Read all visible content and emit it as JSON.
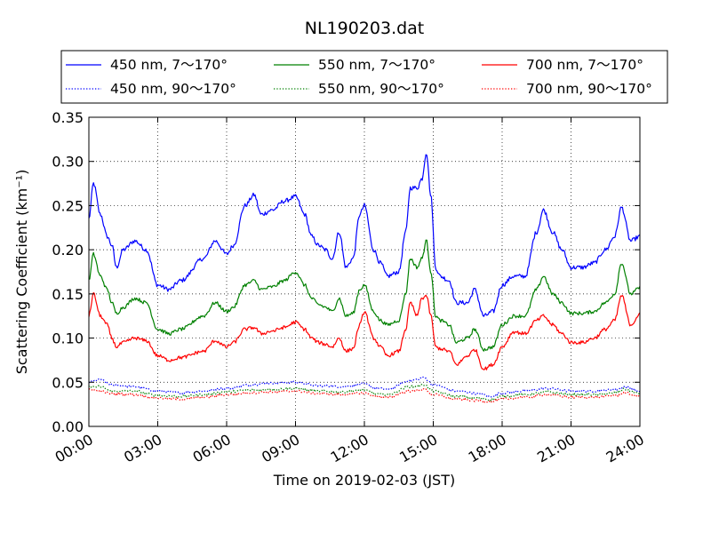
{
  "chart_data": {
    "type": "line",
    "title": "NL190203.dat",
    "xlabel": "Time on 2019-02-03 (JST)",
    "ylabel": "Scattering Coefficient (km⁻¹)",
    "xlim": [
      0,
      24
    ],
    "ylim": [
      0,
      0.35
    ],
    "x_unit": "hours",
    "xticks": [
      "00:00",
      "03:00",
      "06:00",
      "09:00",
      "12:00",
      "15:00",
      "18:00",
      "21:00",
      "24:00"
    ],
    "yticks": [
      "0.00",
      "0.05",
      "0.10",
      "0.15",
      "0.20",
      "0.25",
      "0.30",
      "0.35"
    ],
    "grid": true,
    "legend_position": "top",
    "series": [
      {
        "name": "450 nm, 7～170°",
        "color": "#0000ff",
        "style": "solid",
        "points": [
          [
            0,
            0.235
          ],
          [
            0.2,
            0.275
          ],
          [
            0.5,
            0.24
          ],
          [
            0.8,
            0.215
          ],
          [
            1.0,
            0.205
          ],
          [
            1.2,
            0.18
          ],
          [
            1.5,
            0.2
          ],
          [
            2.0,
            0.21
          ],
          [
            2.5,
            0.2
          ],
          [
            3.0,
            0.16
          ],
          [
            3.5,
            0.155
          ],
          [
            4.0,
            0.165
          ],
          [
            5.0,
            0.19
          ],
          [
            5.5,
            0.21
          ],
          [
            6.0,
            0.195
          ],
          [
            6.3,
            0.205
          ],
          [
            6.8,
            0.25
          ],
          [
            7.2,
            0.262
          ],
          [
            7.5,
            0.24
          ],
          [
            8.0,
            0.245
          ],
          [
            8.5,
            0.255
          ],
          [
            9.0,
            0.26
          ],
          [
            9.4,
            0.24
          ],
          [
            9.7,
            0.215
          ],
          [
            10.0,
            0.205
          ],
          [
            10.3,
            0.2
          ],
          [
            10.6,
            0.19
          ],
          [
            10.9,
            0.22
          ],
          [
            11.2,
            0.18
          ],
          [
            11.5,
            0.19
          ],
          [
            11.8,
            0.24
          ],
          [
            12.0,
            0.25
          ],
          [
            12.4,
            0.2
          ],
          [
            12.7,
            0.185
          ],
          [
            13.0,
            0.17
          ],
          [
            13.5,
            0.175
          ],
          [
            13.8,
            0.22
          ],
          [
            14.0,
            0.27
          ],
          [
            14.3,
            0.27
          ],
          [
            14.5,
            0.28
          ],
          [
            14.7,
            0.31
          ],
          [
            14.9,
            0.26
          ],
          [
            15.1,
            0.18
          ],
          [
            15.3,
            0.17
          ],
          [
            15.7,
            0.165
          ],
          [
            16.0,
            0.14
          ],
          [
            16.5,
            0.14
          ],
          [
            16.8,
            0.155
          ],
          [
            17.2,
            0.125
          ],
          [
            17.6,
            0.13
          ],
          [
            18.0,
            0.16
          ],
          [
            18.5,
            0.17
          ],
          [
            19.0,
            0.17
          ],
          [
            19.5,
            0.22
          ],
          [
            19.8,
            0.245
          ],
          [
            20.2,
            0.22
          ],
          [
            20.6,
            0.2
          ],
          [
            21.0,
            0.18
          ],
          [
            21.5,
            0.18
          ],
          [
            22.0,
            0.185
          ],
          [
            22.5,
            0.2
          ],
          [
            22.9,
            0.215
          ],
          [
            23.2,
            0.248
          ],
          [
            23.6,
            0.21
          ],
          [
            24.0,
            0.215
          ]
        ]
      },
      {
        "name": "450 nm, 90～170°",
        "color": "#0000ff",
        "style": "dotted",
        "points": [
          [
            0,
            0.05
          ],
          [
            0.5,
            0.053
          ],
          [
            1,
            0.047
          ],
          [
            2,
            0.045
          ],
          [
            3,
            0.04
          ],
          [
            4,
            0.038
          ],
          [
            5,
            0.04
          ],
          [
            6,
            0.043
          ],
          [
            7,
            0.047
          ],
          [
            8,
            0.049
          ],
          [
            9,
            0.05
          ],
          [
            10,
            0.046
          ],
          [
            11,
            0.045
          ],
          [
            12,
            0.048
          ],
          [
            12.5,
            0.043
          ],
          [
            13,
            0.042
          ],
          [
            14,
            0.052
          ],
          [
            14.6,
            0.055
          ],
          [
            15,
            0.047
          ],
          [
            16,
            0.04
          ],
          [
            17,
            0.037
          ],
          [
            17.5,
            0.034
          ],
          [
            18,
            0.038
          ],
          [
            19,
            0.04
          ],
          [
            20,
            0.043
          ],
          [
            21,
            0.04
          ],
          [
            22,
            0.04
          ],
          [
            23,
            0.042
          ],
          [
            23.3,
            0.045
          ],
          [
            24,
            0.04
          ]
        ]
      },
      {
        "name": "550 nm, 7～170°",
        "color": "#008000",
        "style": "solid",
        "points": [
          [
            0,
            0.165
          ],
          [
            0.2,
            0.195
          ],
          [
            0.5,
            0.17
          ],
          [
            0.8,
            0.155
          ],
          [
            1.0,
            0.14
          ],
          [
            1.2,
            0.128
          ],
          [
            1.5,
            0.135
          ],
          [
            2.0,
            0.145
          ],
          [
            2.5,
            0.14
          ],
          [
            3.0,
            0.11
          ],
          [
            3.5,
            0.105
          ],
          [
            4.0,
            0.11
          ],
          [
            5.0,
            0.125
          ],
          [
            5.5,
            0.14
          ],
          [
            6.0,
            0.13
          ],
          [
            6.3,
            0.135
          ],
          [
            6.8,
            0.16
          ],
          [
            7.2,
            0.165
          ],
          [
            7.5,
            0.155
          ],
          [
            8.0,
            0.158
          ],
          [
            8.5,
            0.165
          ],
          [
            9.0,
            0.175
          ],
          [
            9.4,
            0.16
          ],
          [
            9.7,
            0.145
          ],
          [
            10.0,
            0.138
          ],
          [
            10.3,
            0.135
          ],
          [
            10.6,
            0.13
          ],
          [
            10.9,
            0.145
          ],
          [
            11.2,
            0.125
          ],
          [
            11.5,
            0.128
          ],
          [
            11.8,
            0.155
          ],
          [
            12.0,
            0.16
          ],
          [
            12.4,
            0.13
          ],
          [
            12.7,
            0.12
          ],
          [
            13.0,
            0.115
          ],
          [
            13.5,
            0.12
          ],
          [
            13.8,
            0.15
          ],
          [
            14.0,
            0.19
          ],
          [
            14.3,
            0.18
          ],
          [
            14.5,
            0.19
          ],
          [
            14.7,
            0.21
          ],
          [
            14.9,
            0.175
          ],
          [
            15.1,
            0.125
          ],
          [
            15.3,
            0.12
          ],
          [
            15.7,
            0.115
          ],
          [
            16.0,
            0.095
          ],
          [
            16.5,
            0.1
          ],
          [
            16.8,
            0.11
          ],
          [
            17.2,
            0.087
          ],
          [
            17.6,
            0.09
          ],
          [
            18.0,
            0.115
          ],
          [
            18.5,
            0.125
          ],
          [
            19.0,
            0.125
          ],
          [
            19.5,
            0.155
          ],
          [
            19.8,
            0.17
          ],
          [
            20.2,
            0.15
          ],
          [
            20.6,
            0.14
          ],
          [
            21.0,
            0.128
          ],
          [
            21.5,
            0.128
          ],
          [
            22.0,
            0.13
          ],
          [
            22.5,
            0.14
          ],
          [
            22.9,
            0.15
          ],
          [
            23.2,
            0.185
          ],
          [
            23.6,
            0.15
          ],
          [
            24.0,
            0.157
          ]
        ]
      },
      {
        "name": "550 nm, 90～170°",
        "color": "#008000",
        "style": "dotted",
        "points": [
          [
            0,
            0.045
          ],
          [
            0.5,
            0.045
          ],
          [
            1,
            0.04
          ],
          [
            2,
            0.04
          ],
          [
            3,
            0.035
          ],
          [
            4,
            0.034
          ],
          [
            5,
            0.036
          ],
          [
            6,
            0.039
          ],
          [
            7,
            0.041
          ],
          [
            8,
            0.042
          ],
          [
            9,
            0.043
          ],
          [
            10,
            0.04
          ],
          [
            11,
            0.039
          ],
          [
            12,
            0.041
          ],
          [
            12.5,
            0.037
          ],
          [
            13,
            0.036
          ],
          [
            14,
            0.045
          ],
          [
            14.6,
            0.047
          ],
          [
            15,
            0.04
          ],
          [
            16,
            0.034
          ],
          [
            17,
            0.032
          ],
          [
            17.5,
            0.03
          ],
          [
            18,
            0.034
          ],
          [
            19,
            0.036
          ],
          [
            20,
            0.039
          ],
          [
            21,
            0.036
          ],
          [
            22,
            0.036
          ],
          [
            23,
            0.038
          ],
          [
            23.3,
            0.042
          ],
          [
            24,
            0.037
          ]
        ]
      },
      {
        "name": "700 nm, 7～170°",
        "color": "#ff0000",
        "style": "solid",
        "points": [
          [
            0,
            0.125
          ],
          [
            0.2,
            0.15
          ],
          [
            0.5,
            0.125
          ],
          [
            0.8,
            0.115
          ],
          [
            1.0,
            0.1
          ],
          [
            1.2,
            0.09
          ],
          [
            1.5,
            0.095
          ],
          [
            2.0,
            0.1
          ],
          [
            2.5,
            0.097
          ],
          [
            3.0,
            0.08
          ],
          [
            3.5,
            0.075
          ],
          [
            4.0,
            0.078
          ],
          [
            5.0,
            0.085
          ],
          [
            5.5,
            0.097
          ],
          [
            6.0,
            0.09
          ],
          [
            6.3,
            0.095
          ],
          [
            6.8,
            0.11
          ],
          [
            7.2,
            0.112
          ],
          [
            7.5,
            0.105
          ],
          [
            8.0,
            0.108
          ],
          [
            8.5,
            0.112
          ],
          [
            9.0,
            0.118
          ],
          [
            9.4,
            0.11
          ],
          [
            9.7,
            0.1
          ],
          [
            10.0,
            0.095
          ],
          [
            10.3,
            0.093
          ],
          [
            10.6,
            0.09
          ],
          [
            10.9,
            0.1
          ],
          [
            11.2,
            0.085
          ],
          [
            11.5,
            0.088
          ],
          [
            11.8,
            0.115
          ],
          [
            12.0,
            0.13
          ],
          [
            12.4,
            0.1
          ],
          [
            12.7,
            0.09
          ],
          [
            13.0,
            0.08
          ],
          [
            13.5,
            0.085
          ],
          [
            13.8,
            0.11
          ],
          [
            14.0,
            0.14
          ],
          [
            14.3,
            0.125
          ],
          [
            14.5,
            0.145
          ],
          [
            14.7,
            0.148
          ],
          [
            14.9,
            0.125
          ],
          [
            15.1,
            0.09
          ],
          [
            15.3,
            0.088
          ],
          [
            15.7,
            0.085
          ],
          [
            16.0,
            0.07
          ],
          [
            16.5,
            0.08
          ],
          [
            16.8,
            0.087
          ],
          [
            17.2,
            0.065
          ],
          [
            17.6,
            0.07
          ],
          [
            18.0,
            0.09
          ],
          [
            18.5,
            0.107
          ],
          [
            19.0,
            0.105
          ],
          [
            19.5,
            0.12
          ],
          [
            19.8,
            0.125
          ],
          [
            20.2,
            0.115
          ],
          [
            20.6,
            0.105
          ],
          [
            21.0,
            0.095
          ],
          [
            21.5,
            0.095
          ],
          [
            22.0,
            0.1
          ],
          [
            22.5,
            0.11
          ],
          [
            22.9,
            0.12
          ],
          [
            23.2,
            0.148
          ],
          [
            23.6,
            0.115
          ],
          [
            24.0,
            0.127
          ]
        ]
      },
      {
        "name": "700 nm, 90～170°",
        "color": "#ff0000",
        "style": "dotted",
        "points": [
          [
            0,
            0.042
          ],
          [
            0.5,
            0.04
          ],
          [
            1,
            0.037
          ],
          [
            2,
            0.036
          ],
          [
            3,
            0.032
          ],
          [
            4,
            0.031
          ],
          [
            5,
            0.033
          ],
          [
            6,
            0.036
          ],
          [
            7,
            0.038
          ],
          [
            8,
            0.039
          ],
          [
            9,
            0.04
          ],
          [
            10,
            0.037
          ],
          [
            11,
            0.036
          ],
          [
            12,
            0.038
          ],
          [
            12.5,
            0.034
          ],
          [
            13,
            0.033
          ],
          [
            14,
            0.04
          ],
          [
            14.6,
            0.042
          ],
          [
            15,
            0.036
          ],
          [
            16,
            0.031
          ],
          [
            17,
            0.029
          ],
          [
            17.5,
            0.028
          ],
          [
            18,
            0.031
          ],
          [
            19,
            0.033
          ],
          [
            20,
            0.036
          ],
          [
            21,
            0.033
          ],
          [
            22,
            0.033
          ],
          [
            23,
            0.035
          ],
          [
            23.3,
            0.038
          ],
          [
            24,
            0.034
          ]
        ]
      }
    ]
  }
}
